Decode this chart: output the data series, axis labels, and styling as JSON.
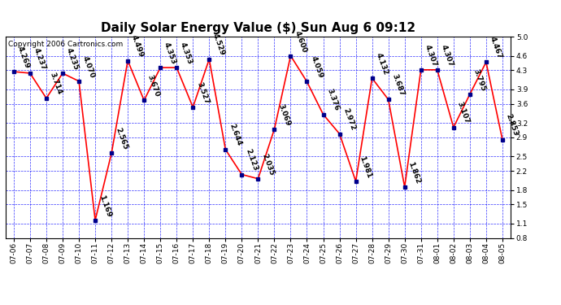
{
  "title": "Daily Solar Energy Value ($) Sun Aug 6 09:12",
  "copyright": "Copyright 2006 Cartronics.com",
  "dates": [
    "07-06",
    "07-07",
    "07-08",
    "07-09",
    "07-10",
    "07-11",
    "07-12",
    "07-13",
    "07-14",
    "07-15",
    "07-16",
    "07-17",
    "07-18",
    "07-19",
    "07-20",
    "07-21",
    "07-22",
    "07-23",
    "07-24",
    "07-25",
    "07-26",
    "07-27",
    "07-28",
    "07-29",
    "07-30",
    "07-31",
    "08-01",
    "08-02",
    "08-03",
    "08-04",
    "08-05"
  ],
  "values": [
    4.269,
    4.237,
    3.714,
    4.235,
    4.07,
    1.169,
    2.565,
    4.499,
    3.67,
    4.353,
    4.353,
    3.527,
    4.529,
    2.644,
    2.123,
    2.035,
    3.069,
    4.6,
    4.059,
    3.376,
    2.972,
    1.981,
    4.132,
    3.687,
    1.862,
    4.307,
    4.307,
    3.107,
    3.795,
    4.467,
    2.853
  ],
  "ylim": [
    0.8,
    5.0
  ],
  "yticks": [
    0.8,
    1.1,
    1.5,
    1.8,
    2.2,
    2.5,
    2.9,
    3.2,
    3.6,
    3.9,
    4.3,
    4.6,
    5.0
  ],
  "line_color": "red",
  "marker_color": "darkblue",
  "bg_color": "white",
  "grid_color": "blue",
  "title_fontsize": 11,
  "label_fontsize": 6.5,
  "tick_fontsize": 6.5,
  "copyright_fontsize": 6.5
}
